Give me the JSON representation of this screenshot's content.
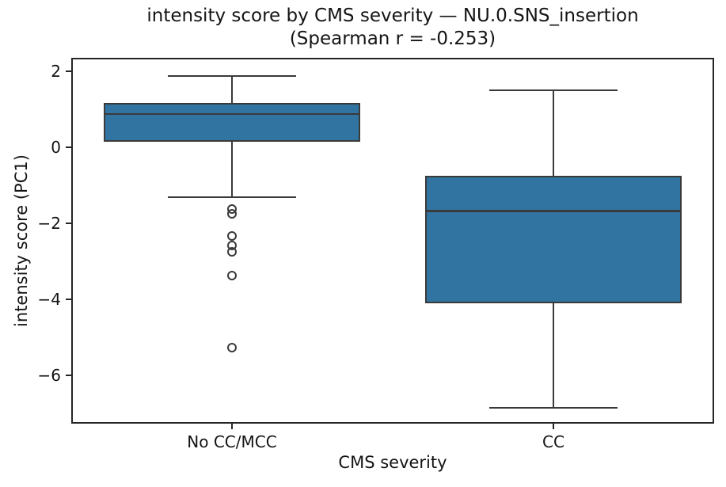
{
  "chart_data": {
    "type": "boxplot",
    "title_line1": "intensity score by CMS severity — NU.0.SNS_insertion",
    "title_line2": "(Spearman r = -0.253)",
    "xlabel": "CMS severity",
    "ylabel": "intensity score (PC1)",
    "categories": [
      "No CC/MCC",
      "CC"
    ],
    "ylim": [
      -7.28,
      2.36
    ],
    "yticks": [
      {
        "value": 2,
        "label": "2"
      },
      {
        "value": 0,
        "label": "0"
      },
      {
        "value": -2,
        "label": "−2"
      },
      {
        "value": -4,
        "label": "−4"
      },
      {
        "value": -6,
        "label": "−6"
      }
    ],
    "grid": false,
    "legend": null,
    "colors": {
      "box_fill": "#3274a1",
      "box_edge": "#3a3a3a",
      "axis": "#262626",
      "text": "#141414"
    },
    "boxes": [
      {
        "category": "No CC/MCC",
        "whisker_high": 1.87,
        "q3": 1.18,
        "median": 0.88,
        "q1": 0.15,
        "whisker_low": -1.32,
        "outliers": [
          -1.62,
          -1.75,
          -2.33,
          -2.58,
          -2.75,
          -3.38,
          -5.27
        ]
      },
      {
        "category": "CC",
        "whisker_high": 1.5,
        "q3": -0.75,
        "median": -1.68,
        "q1": -4.1,
        "whisker_low": -6.87,
        "outliers": []
      }
    ]
  }
}
